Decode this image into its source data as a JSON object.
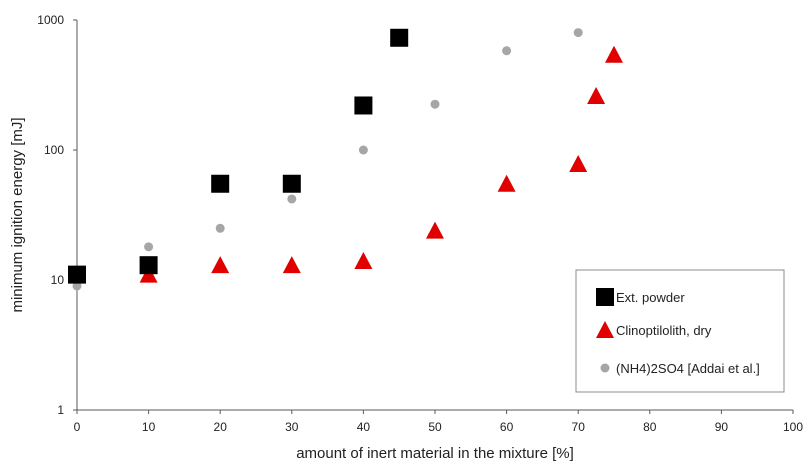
{
  "chart_data": {
    "type": "scatter",
    "xlabel": "amount of inert material in the mixture [%]",
    "ylabel": "minimum ignition energy [mJ]",
    "xlim": [
      0,
      100
    ],
    "ylim": [
      1,
      1000
    ],
    "yscale": "log",
    "grid": false,
    "legend_position": "bottom-right",
    "x_ticks": [
      "0",
      "10",
      "20",
      "30",
      "40",
      "50",
      "60",
      "70",
      "80",
      "90",
      "100"
    ],
    "y_ticks": [
      "1",
      "10",
      "100",
      "1000"
    ],
    "series": [
      {
        "name": "Ext. powder",
        "marker": "square",
        "color": "#000000",
        "points": [
          {
            "x": 0,
            "y": 11
          },
          {
            "x": 10,
            "y": 13
          },
          {
            "x": 20,
            "y": 55
          },
          {
            "x": 30,
            "y": 55
          },
          {
            "x": 40,
            "y": 220
          },
          {
            "x": 45,
            "y": 730
          }
        ]
      },
      {
        "name": "Clinoptilolith, dry",
        "marker": "triangle",
        "color": "#e00000",
        "points": [
          {
            "x": 0,
            "y": 11
          },
          {
            "x": 10,
            "y": 11
          },
          {
            "x": 20,
            "y": 13
          },
          {
            "x": 30,
            "y": 13
          },
          {
            "x": 40,
            "y": 14
          },
          {
            "x": 50,
            "y": 24
          },
          {
            "x": 60,
            "y": 55
          },
          {
            "x": 70,
            "y": 78
          },
          {
            "x": 72.5,
            "y": 260
          },
          {
            "x": 75,
            "y": 540
          }
        ]
      },
      {
        "name": "(NH4)2SO4 [Addai et al.]",
        "marker": "circle",
        "color": "#a6a6a6",
        "points": [
          {
            "x": 0,
            "y": 9
          },
          {
            "x": 10,
            "y": 18
          },
          {
            "x": 20,
            "y": 25
          },
          {
            "x": 30,
            "y": 42
          },
          {
            "x": 40,
            "y": 100
          },
          {
            "x": 50,
            "y": 225
          },
          {
            "x": 60,
            "y": 580
          },
          {
            "x": 70,
            "y": 800
          }
        ]
      }
    ]
  }
}
